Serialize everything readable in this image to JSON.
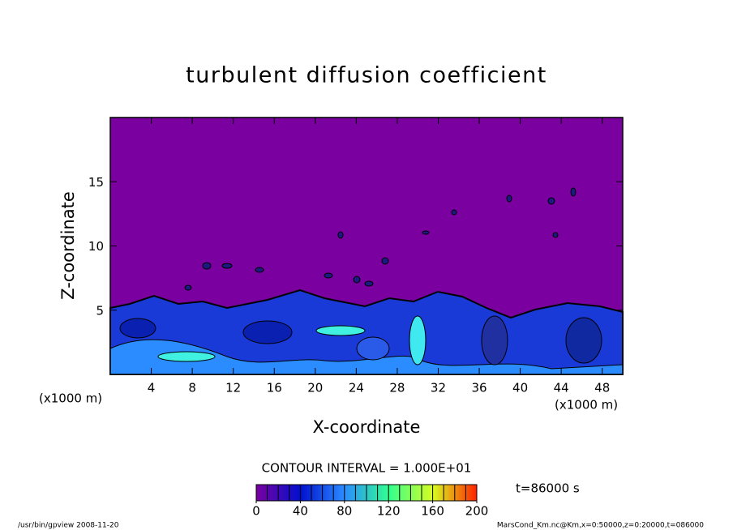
{
  "chart_data": {
    "type": "contour",
    "title": "turbulent diffusion coefficient",
    "x_label": "X-coordinate",
    "y_label": "Z-coordinate",
    "x_unit": "(x1000 m)",
    "xlim": [
      0,
      50
    ],
    "xticks": [
      4,
      8,
      12,
      16,
      20,
      24,
      28,
      32,
      36,
      40,
      44,
      48
    ],
    "ylim": [
      0,
      20
    ],
    "yticks": [
      5,
      10,
      15
    ],
    "contour_interval": {
      "value": 10,
      "label": "CONTOUR INTERVAL = 1.000E+01"
    },
    "colorbar_lim": [
      0,
      200
    ],
    "colorbar_ticks": [
      0,
      40,
      80,
      120,
      160,
      200
    ],
    "colormap": [
      "#7a00a0",
      "#0010d0",
      "#2a8cff",
      "#30ff90",
      "#d8ff20",
      "#ff2000"
    ],
    "annotation": "t=86000 s",
    "footer_left": "/usr/bin/gpview   2008-11-20",
    "footer_right": "MarsCond_Km.nc@Km,x=0:50000,z=0:20000,t=086000"
  }
}
